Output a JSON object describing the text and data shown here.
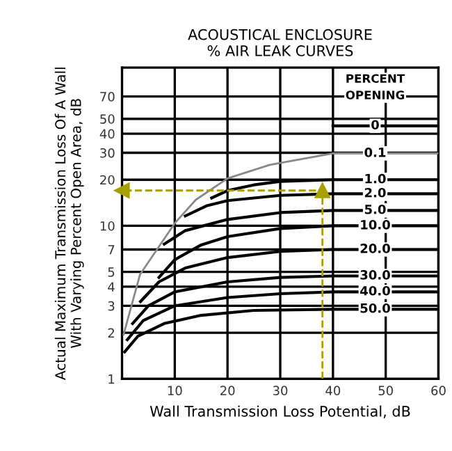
{
  "chart_data": {
    "type": "line",
    "title": "ACOUSTICAL ENCLOSURE\n% AIR LEAK CURVES",
    "xlabel": "Wall Transmission Loss Potential, dB",
    "ylabel": "Actual Maximum Transmission Loss Of A Wall\nWith Varying Percent Open Area, dB",
    "legend_title": "PERCENT\nOPENING",
    "log": "y",
    "grid": true,
    "legend": false,
    "xlim": [
      0,
      60
    ],
    "ylim": [
      1,
      108
    ],
    "xticks": [
      10,
      20,
      30,
      40,
      50,
      60
    ],
    "yticks": [
      1,
      2,
      3,
      4,
      5,
      7,
      10,
      20,
      30,
      40,
      50,
      70
    ],
    "series": [
      {
        "name": "0",
        "color": "#000000",
        "x": [
          40,
          60
        ],
        "values": [
          45,
          45
        ]
      },
      {
        "name": "0.1",
        "color": "#888888",
        "x": [
          0.3,
          3.4,
          10,
          14,
          20,
          28,
          40,
          60
        ],
        "values": [
          1.95,
          4.8,
          10.4,
          14.8,
          20.4,
          25,
          29.7,
          29.7
        ]
      },
      {
        "name": "1.0",
        "color": "#000000",
        "x": [
          17,
          20,
          25,
          30,
          40,
          60
        ],
        "values": [
          15.2,
          17,
          18.5,
          19.5,
          20,
          20
        ]
      },
      {
        "name": "2.0",
        "color": "#000000",
        "x": [
          12,
          16,
          20,
          30,
          40,
          60
        ],
        "values": [
          11.6,
          13.5,
          14.6,
          15.8,
          16.2,
          16.2
        ]
      },
      {
        "name": "5.0",
        "color": "#000000",
        "x": [
          8,
          12,
          20,
          30,
          40,
          60
        ],
        "values": [
          7.6,
          9.3,
          11,
          12.2,
          12.6,
          12.6
        ]
      },
      {
        "name": "10.0",
        "color": "#000000",
        "x": [
          7,
          10,
          15,
          20,
          30,
          40,
          60
        ],
        "values": [
          4.6,
          6,
          7.5,
          8.5,
          9.6,
          10,
          10
        ]
      },
      {
        "name": "20.0",
        "color": "#000000",
        "x": [
          3.5,
          7,
          12,
          20,
          30,
          40,
          60
        ],
        "values": [
          3.2,
          4.3,
          5.3,
          6.2,
          6.8,
          7,
          7
        ]
      },
      {
        "name": "30.0",
        "color": "#000000",
        "x": [
          2,
          5,
          10,
          20,
          30,
          40,
          60
        ],
        "values": [
          2.3,
          3,
          3.7,
          4.3,
          4.6,
          4.7,
          4.7
        ]
      },
      {
        "name": "40.0",
        "color": "#000000",
        "x": [
          1,
          4,
          10,
          20,
          30,
          40,
          60
        ],
        "values": [
          1.8,
          2.4,
          3,
          3.4,
          3.6,
          3.7,
          3.7
        ]
      },
      {
        "name": "50.0",
        "color": "#000000",
        "x": [
          0.5,
          3,
          8,
          15,
          25,
          40,
          60
        ],
        "values": [
          1.5,
          1.9,
          2.3,
          2.6,
          2.8,
          2.85,
          2.85
        ]
      },
      {
        "color": "#a8a000",
        "line_style": "dashed",
        "marker": "triangle",
        "x": [
          38,
          38,
          0
        ],
        "values": [
          1,
          17,
          17
        ]
      }
    ]
  }
}
